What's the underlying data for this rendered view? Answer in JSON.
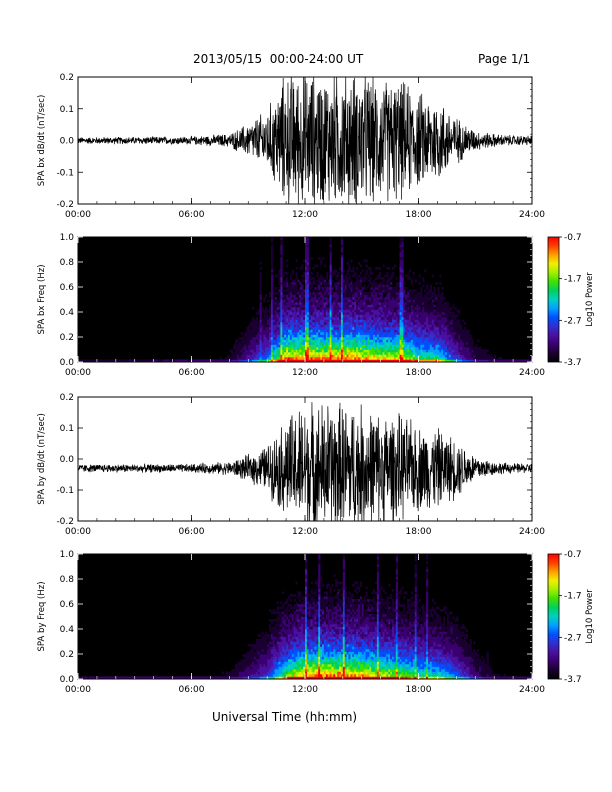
{
  "header": {
    "title": "2013/05/15  00:00-24:00 UT",
    "page": "Page 1/1"
  },
  "footer": {
    "xlabel": "Universal Time (hh:mm)"
  },
  "colors": {
    "trace": "#000000",
    "background": "#000000",
    "colorbar": [
      "#000000",
      "#1a0030",
      "#3a0070",
      "#4a10a0",
      "#3030d0",
      "#0050ff",
      "#00a0ff",
      "#00d0c0",
      "#00d060",
      "#40e000",
      "#a0f000",
      "#f0f000",
      "#ffa000",
      "#ff4000",
      "#ff0000"
    ]
  },
  "chart_data": [
    {
      "type": "line",
      "id": "bx-dbdt",
      "ylabel": "SPA bx dB/dt (nT/sec)",
      "xlim_hours": [
        0,
        24
      ],
      "xticks": [
        "00:00",
        "06:00",
        "12:00",
        "18:00",
        "24:00"
      ],
      "ylim": [
        -0.2,
        0.2
      ],
      "yticks": [
        "0.2",
        "0.1",
        "0.0",
        "-0.1",
        "-0.2"
      ],
      "baseline": 0.0,
      "envelope": {
        "hours": [
          0,
          6,
          8,
          9,
          10,
          11,
          12,
          13,
          14,
          15,
          16,
          17,
          18,
          19,
          20,
          21,
          22,
          23,
          24
        ],
        "amplitude": [
          0.01,
          0.012,
          0.02,
          0.05,
          0.09,
          0.2,
          0.2,
          0.2,
          0.2,
          0.2,
          0.18,
          0.18,
          0.14,
          0.13,
          0.07,
          0.03,
          0.02,
          0.015,
          0.015
        ]
      }
    },
    {
      "type": "heatmap",
      "id": "bx-spectrogram",
      "ylabel": "SPA bx Freq (Hz)",
      "xlim_hours": [
        0,
        24
      ],
      "xticks": [
        "00:00",
        "06:00",
        "12:00",
        "18:00",
        "24:00"
      ],
      "ylim": [
        0.0,
        1.0
      ],
      "yticks": [
        "1.0",
        "0.8",
        "0.6",
        "0.4",
        "0.2",
        "0.0"
      ],
      "colorbar": {
        "label": "Log10 Power",
        "range": [
          -3.7,
          -0.7
        ],
        "ticks": [
          "-0.7",
          "-1.7",
          "-2.7",
          "-3.7"
        ]
      }
    },
    {
      "type": "line",
      "id": "by-dbdt",
      "ylabel": "SPA by dB/dt (nT/sec)",
      "xlim_hours": [
        0,
        24
      ],
      "xticks": [
        "00:00",
        "06:00",
        "12:00",
        "18:00",
        "24:00"
      ],
      "ylim": [
        -0.2,
        0.2
      ],
      "yticks": [
        "0.2",
        "0.1",
        "0.0",
        "-0.1",
        "-0.2"
      ],
      "baseline": -0.03,
      "envelope": {
        "hours": [
          0,
          6,
          8,
          9,
          10,
          11,
          12,
          13,
          14,
          15,
          16,
          17,
          18,
          19,
          20,
          21,
          22,
          23,
          24
        ],
        "amplitude": [
          0.012,
          0.013,
          0.02,
          0.04,
          0.07,
          0.15,
          0.2,
          0.2,
          0.2,
          0.19,
          0.17,
          0.16,
          0.13,
          0.12,
          0.09,
          0.04,
          0.02,
          0.015,
          0.015
        ]
      }
    },
    {
      "type": "heatmap",
      "id": "by-spectrogram",
      "ylabel": "SPA by Freq (Hz)",
      "xlim_hours": [
        0,
        24
      ],
      "xticks": [
        "00:00",
        "06:00",
        "12:00",
        "18:00",
        "24:00"
      ],
      "ylim": [
        0.0,
        1.0
      ],
      "yticks": [
        "1.0",
        "0.8",
        "0.6",
        "0.4",
        "0.2",
        "0.0"
      ],
      "colorbar": {
        "label": "Log10 Power",
        "range": [
          -3.7,
          -0.7
        ],
        "ticks": [
          "-0.7",
          "-1.7",
          "-2.7",
          "-3.7"
        ]
      }
    }
  ]
}
